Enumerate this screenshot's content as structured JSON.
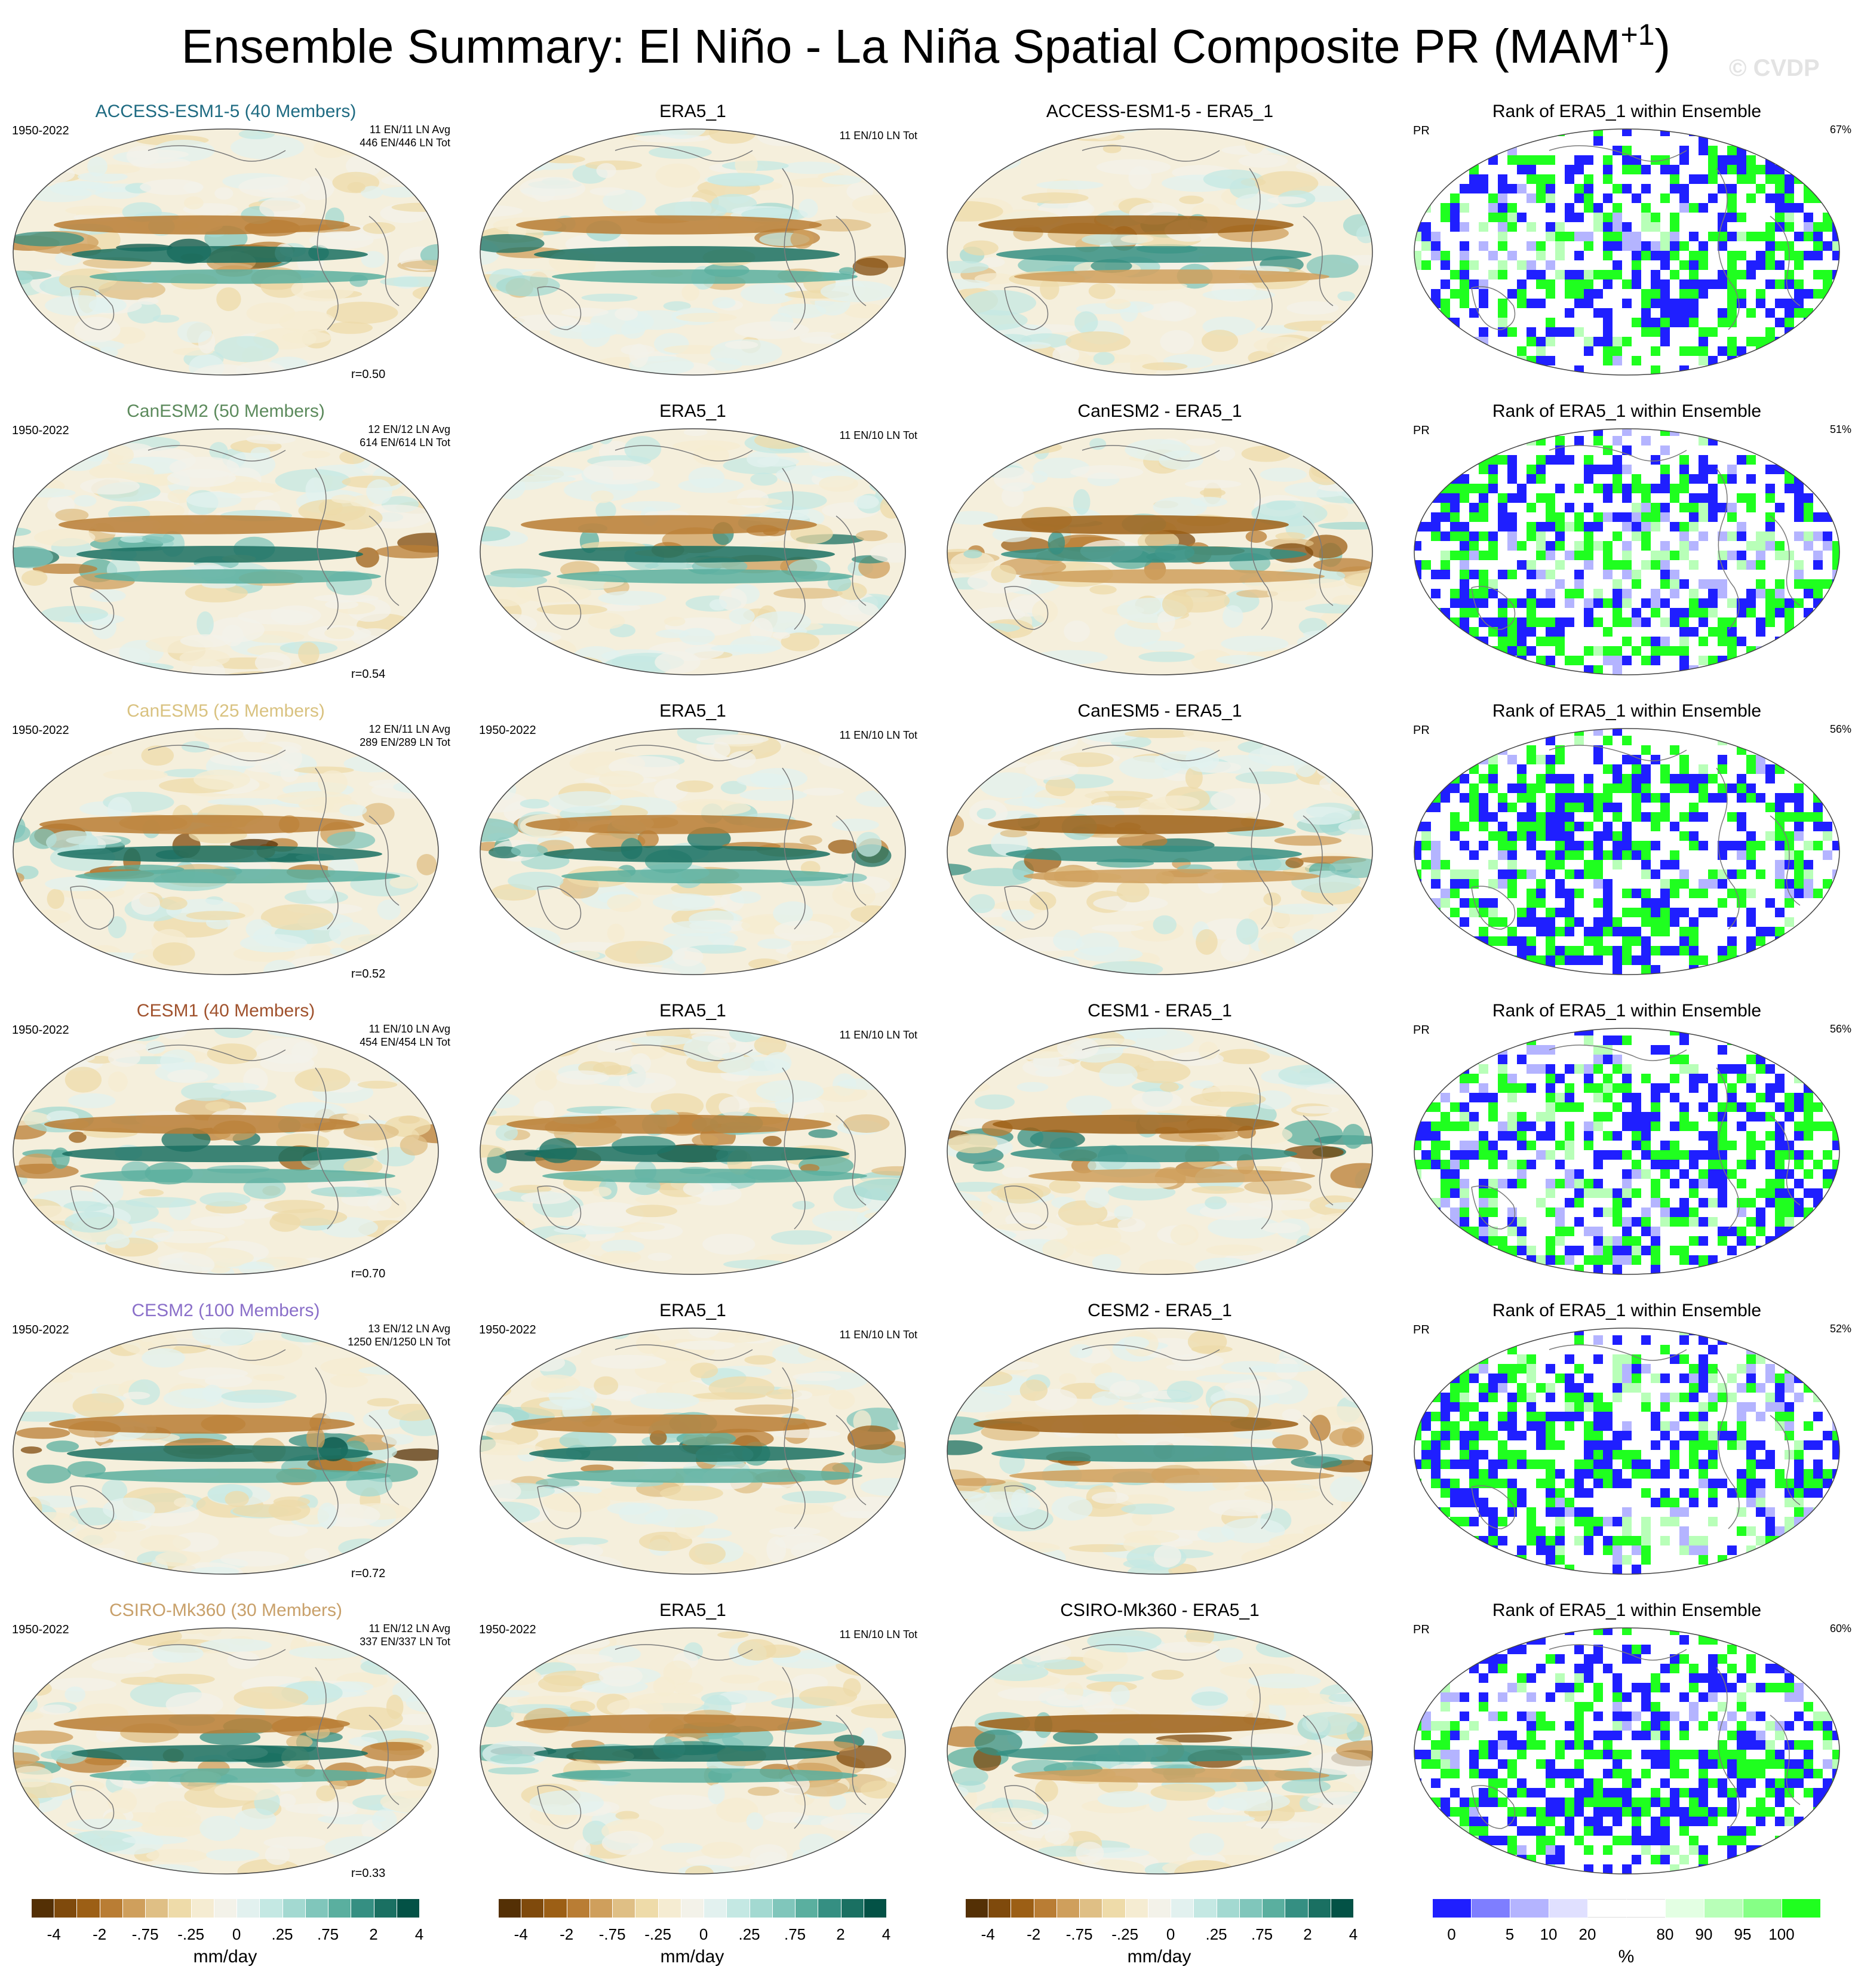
{
  "title": {
    "main": "Ensemble Summary: El Niño - La Niña Spatial Composite PR (MAM",
    "sup": "+1",
    "close": ")"
  },
  "watermark": "© CVDP",
  "chart_data": {
    "type": "heatmap",
    "variable": "PR",
    "period": "1950-2022",
    "units": "mm/day",
    "rank_units": "%",
    "observation": "ERA5_1",
    "column_titles": {
      "obs": "ERA5_1",
      "rank": "Rank of ERA5_1 within Ensemble"
    },
    "rows": [
      {
        "model": "ACCESS-ESM1-5 (40 Members)",
        "model_color": "#1f6b82",
        "diff_title": "ACCESS-ESM1-5 - ERA5_1",
        "avg": "11 EN/11 LN Avg",
        "tot": "446 EN/446 LN Tot",
        "r": "r=0.50",
        "obs_years": "",
        "rank_pct": "67%"
      },
      {
        "model": "CanESM2 (50 Members)",
        "model_color": "#5c8a5c",
        "diff_title": "CanESM2 - ERA5_1",
        "avg": "12 EN/12 LN Avg",
        "tot": "614 EN/614 LN Tot",
        "r": "r=0.54",
        "obs_years": "",
        "rank_pct": "51%"
      },
      {
        "model": "CanESM5 (25 Members)",
        "model_color": "#d9c280",
        "diff_title": "CanESM5 - ERA5_1",
        "avg": "12 EN/11 LN Avg",
        "tot": "289 EN/289 LN Tot",
        "r": "r=0.52",
        "obs_years": "1950-2022",
        "rank_pct": "56%"
      },
      {
        "model": "CESM1 (40 Members)",
        "model_color": "#a0522d",
        "diff_title": "CESM1 - ERA5_1",
        "avg": "11 EN/10 LN Avg",
        "tot": "454 EN/454 LN Tot",
        "r": "r=0.70",
        "obs_years": "",
        "rank_pct": "56%"
      },
      {
        "model": "CESM2 (100 Members)",
        "model_color": "#8a6fc9",
        "diff_title": "CESM2 - ERA5_1",
        "avg": "13 EN/12 LN Avg",
        "tot": "1250 EN/1250 LN Tot",
        "r": "r=0.72",
        "obs_years": "1950-2022",
        "rank_pct": "52%"
      },
      {
        "model": "CSIRO-Mk360 (30 Members)",
        "model_color": "#c8a06a",
        "diff_title": "CSIRO-Mk360 - ERA5_1",
        "avg": "11 EN/12 LN Avg",
        "tot": "337 EN/337 LN Tot",
        "r": "r=0.33",
        "obs_years": "1950-2022",
        "rank_pct": "60%"
      }
    ],
    "obs_counts": "11 EN/10 LN Tot",
    "pr_colorbar": {
      "colors": [
        "#543005",
        "#7f4a0c",
        "#9c5f15",
        "#b97d34",
        "#cf9f5c",
        "#dfbf85",
        "#eedba9",
        "#f5ecd2",
        "#f3f2e9",
        "#e2f1ef",
        "#c4e8e3",
        "#a3d9d1",
        "#80c6bb",
        "#5aaf9f",
        "#358f82",
        "#1a7062",
        "#035246"
      ],
      "ticks": [
        "-4",
        "-2",
        "-.75",
        "-.25",
        "0",
        ".25",
        ".75",
        "2",
        "4"
      ]
    },
    "rank_colorbar": {
      "colors": [
        "#1f1fff",
        "#7e7eff",
        "#b4b4ff",
        "#e0e0ff",
        "#ffffff",
        "#ffffff",
        "#e3ffe3",
        "#b8ffb8",
        "#86ff86",
        "#1fff1f"
      ],
      "ticks": [
        "0",
        "5",
        "10",
        "20",
        "80",
        "90",
        "95",
        "100"
      ]
    }
  }
}
